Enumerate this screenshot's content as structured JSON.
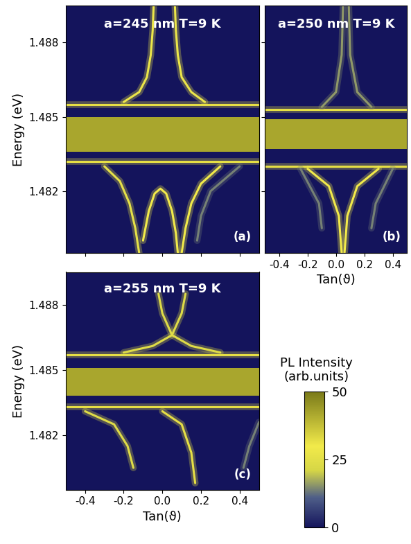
{
  "chart_data": [
    {
      "type": "line",
      "title": "a=245 nm T=9 K",
      "panel": "(a)",
      "y_label": "Energy (eV)",
      "tick_labels": "y",
      "xlim": [
        -0.5,
        0.5
      ],
      "xticks": [
        -0.4,
        -0.2,
        0.0,
        0.2,
        0.4
      ],
      "ylim": [
        1.4795,
        1.4895
      ],
      "yticks": [
        1.482,
        1.485,
        1.488
      ],
      "series": [
        {
          "type": "band",
          "x": [
            -0.5,
            0.5
          ],
          "low": [
            1.4836,
            1.4836
          ],
          "values": [
            1.485,
            1.485
          ],
          "intensity": 42
        },
        {
          "type": "line",
          "x": [
            -0.5,
            0.5
          ],
          "values": [
            1.4855,
            1.4855
          ],
          "intensity": 32
        },
        {
          "type": "line",
          "x": [
            -0.5,
            0.5
          ],
          "values": [
            1.4851,
            1.4851
          ],
          "intensity": 0
        },
        {
          "type": "line",
          "x": [
            -0.5,
            0.5
          ],
          "values": [
            1.4835,
            1.4835
          ],
          "intensity": 0
        },
        {
          "type": "line",
          "x": [
            -0.5,
            0.5
          ],
          "values": [
            1.4832,
            1.4832
          ],
          "intensity": 32
        },
        {
          "type": "line",
          "x": [
            -0.2,
            -0.12,
            -0.08,
            -0.06,
            -0.05,
            -0.045
          ],
          "values": [
            1.4856,
            1.486,
            1.4866,
            1.4875,
            1.4885,
            1.4895
          ],
          "intensity": 28
        },
        {
          "type": "line",
          "x": [
            0.22,
            0.15,
            0.1,
            0.08,
            0.07,
            0.065
          ],
          "values": [
            1.4856,
            1.486,
            1.4866,
            1.4875,
            1.4885,
            1.4895
          ],
          "intensity": 28
        },
        {
          "type": "line",
          "x": [
            -0.3,
            -0.22,
            -0.17,
            -0.14,
            -0.12
          ],
          "values": [
            1.483,
            1.4824,
            1.4815,
            1.4805,
            1.4795
          ],
          "intensity": 26
        },
        {
          "type": "line",
          "x": [
            -0.1,
            -0.07,
            -0.04,
            -0.01,
            0.02,
            0.05,
            0.07,
            0.08
          ],
          "values": [
            1.48,
            1.4812,
            1.4819,
            1.4821,
            1.4819,
            1.4812,
            1.4803,
            1.4795
          ],
          "intensity": 30
        },
        {
          "type": "line",
          "x": [
            0.3,
            0.2,
            0.15,
            0.12,
            0.1
          ],
          "values": [
            1.483,
            1.4823,
            1.4815,
            1.4805,
            1.4795
          ],
          "intensity": 30
        },
        {
          "type": "line",
          "x": [
            0.4,
            0.25,
            0.2,
            0.18
          ],
          "values": [
            1.483,
            1.482,
            1.481,
            1.48
          ],
          "intensity": 14
        }
      ]
    },
    {
      "type": "line",
      "title": "a=250 nm T=9 K",
      "panel": "(b)",
      "x_label": "Tan(ϑ)",
      "tick_labels": "x",
      "xlim": [
        -0.5,
        0.5
      ],
      "xticks": [
        -0.4,
        -0.2,
        0.0,
        0.2,
        0.4
      ],
      "ylim": [
        1.4795,
        1.4895
      ],
      "yticks": [
        1.482,
        1.485,
        1.488
      ],
      "series": [
        {
          "type": "band",
          "x": [
            -0.5,
            0.5
          ],
          "low": [
            1.4837,
            1.4837
          ],
          "values": [
            1.4849,
            1.4849
          ],
          "intensity": 42
        },
        {
          "type": "line",
          "x": [
            -0.5,
            0.5
          ],
          "values": [
            1.4853,
            1.4853
          ],
          "intensity": 32
        },
        {
          "type": "line",
          "x": [
            -0.5,
            0.5
          ],
          "values": [
            1.485,
            1.485
          ],
          "intensity": 0
        },
        {
          "type": "line",
          "x": [
            -0.5,
            0.5
          ],
          "values": [
            1.4833,
            1.4833
          ],
          "intensity": 0
        },
        {
          "type": "line",
          "x": [
            -0.5,
            0.5
          ],
          "values": [
            1.483,
            1.483
          ],
          "intensity": 32
        },
        {
          "type": "line",
          "x": [
            -0.1,
            0.0,
            0.04,
            0.05
          ],
          "values": [
            1.4854,
            1.486,
            1.4875,
            1.4895
          ],
          "intensity": 16
        },
        {
          "type": "line",
          "x": [
            0.25,
            0.15,
            0.1,
            0.09
          ],
          "values": [
            1.4854,
            1.486,
            1.4875,
            1.4895
          ],
          "intensity": 16
        },
        {
          "type": "line",
          "x": [
            -0.2,
            -0.05,
            0.02,
            0.04
          ],
          "values": [
            1.4829,
            1.4822,
            1.481,
            1.4795
          ],
          "intensity": 30
        },
        {
          "type": "line",
          "x": [
            0.3,
            0.15,
            0.08,
            0.06
          ],
          "values": [
            1.4829,
            1.4822,
            1.481,
            1.4795
          ],
          "intensity": 30
        },
        {
          "type": "line",
          "x": [
            -0.25,
            -0.12,
            -0.1
          ],
          "values": [
            1.4829,
            1.4815,
            1.4805
          ],
          "intensity": 14
        },
        {
          "type": "line",
          "x": [
            0.4,
            0.28,
            0.25
          ],
          "values": [
            1.4829,
            1.4815,
            1.4805
          ],
          "intensity": 14
        }
      ]
    },
    {
      "type": "line",
      "title": "a=255 nm T=9 K",
      "panel": "(c)",
      "x_label": "Tan(ϑ)",
      "y_label": "Energy (eV)",
      "xlim": [
        -0.5,
        0.5
      ],
      "xticks": [
        -0.4,
        -0.2,
        0.0,
        0.2,
        0.4
      ],
      "ylim": [
        1.4795,
        1.4895
      ],
      "yticks": [
        1.482,
        1.485,
        1.488
      ],
      "series": [
        {
          "type": "band",
          "x": [
            -0.5,
            0.5
          ],
          "low": [
            1.4838,
            1.4838
          ],
          "values": [
            1.4851,
            1.4851
          ],
          "intensity": 42
        },
        {
          "type": "line",
          "x": [
            -0.5,
            0.5
          ],
          "values": [
            1.4857,
            1.4857
          ],
          "intensity": 32
        },
        {
          "type": "line",
          "x": [
            -0.5,
            0.5
          ],
          "values": [
            1.4853,
            1.4853
          ],
          "intensity": 0
        },
        {
          "type": "line",
          "x": [
            -0.5,
            0.5
          ],
          "values": [
            1.4836,
            1.4836
          ],
          "intensity": 0
        },
        {
          "type": "line",
          "x": [
            -0.5,
            0.5
          ],
          "values": [
            1.4833,
            1.4833
          ],
          "intensity": 32
        },
        {
          "type": "line",
          "x": [
            -0.2,
            -0.05,
            0.05,
            0.1,
            0.12
          ],
          "values": [
            1.4858,
            1.4861,
            1.4866,
            1.4876,
            1.4885
          ],
          "intensity": 24
        },
        {
          "type": "line",
          "x": [
            0.3,
            0.15,
            0.05,
            0.0,
            -0.02
          ],
          "values": [
            1.4858,
            1.4861,
            1.4866,
            1.4876,
            1.4885
          ],
          "intensity": 24
        },
        {
          "type": "line",
          "x": [
            -0.4,
            -0.25,
            -0.18,
            -0.15
          ],
          "values": [
            1.4831,
            1.4825,
            1.4815,
            1.4805
          ],
          "intensity": 24
        },
        {
          "type": "line",
          "x": [
            0.0,
            0.1,
            0.15,
            0.17
          ],
          "values": [
            1.4831,
            1.4825,
            1.4812,
            1.4798
          ],
          "intensity": 32
        },
        {
          "type": "line",
          "x": [
            0.5,
            0.45,
            0.42
          ],
          "values": [
            1.4826,
            1.4815,
            1.4805
          ],
          "intensity": 14
        }
      ]
    }
  ],
  "colorbar": {
    "label": "PL Intensity\n(arb.units)",
    "range": [
      0,
      50
    ],
    "ticks": [
      0,
      25,
      50
    ]
  }
}
